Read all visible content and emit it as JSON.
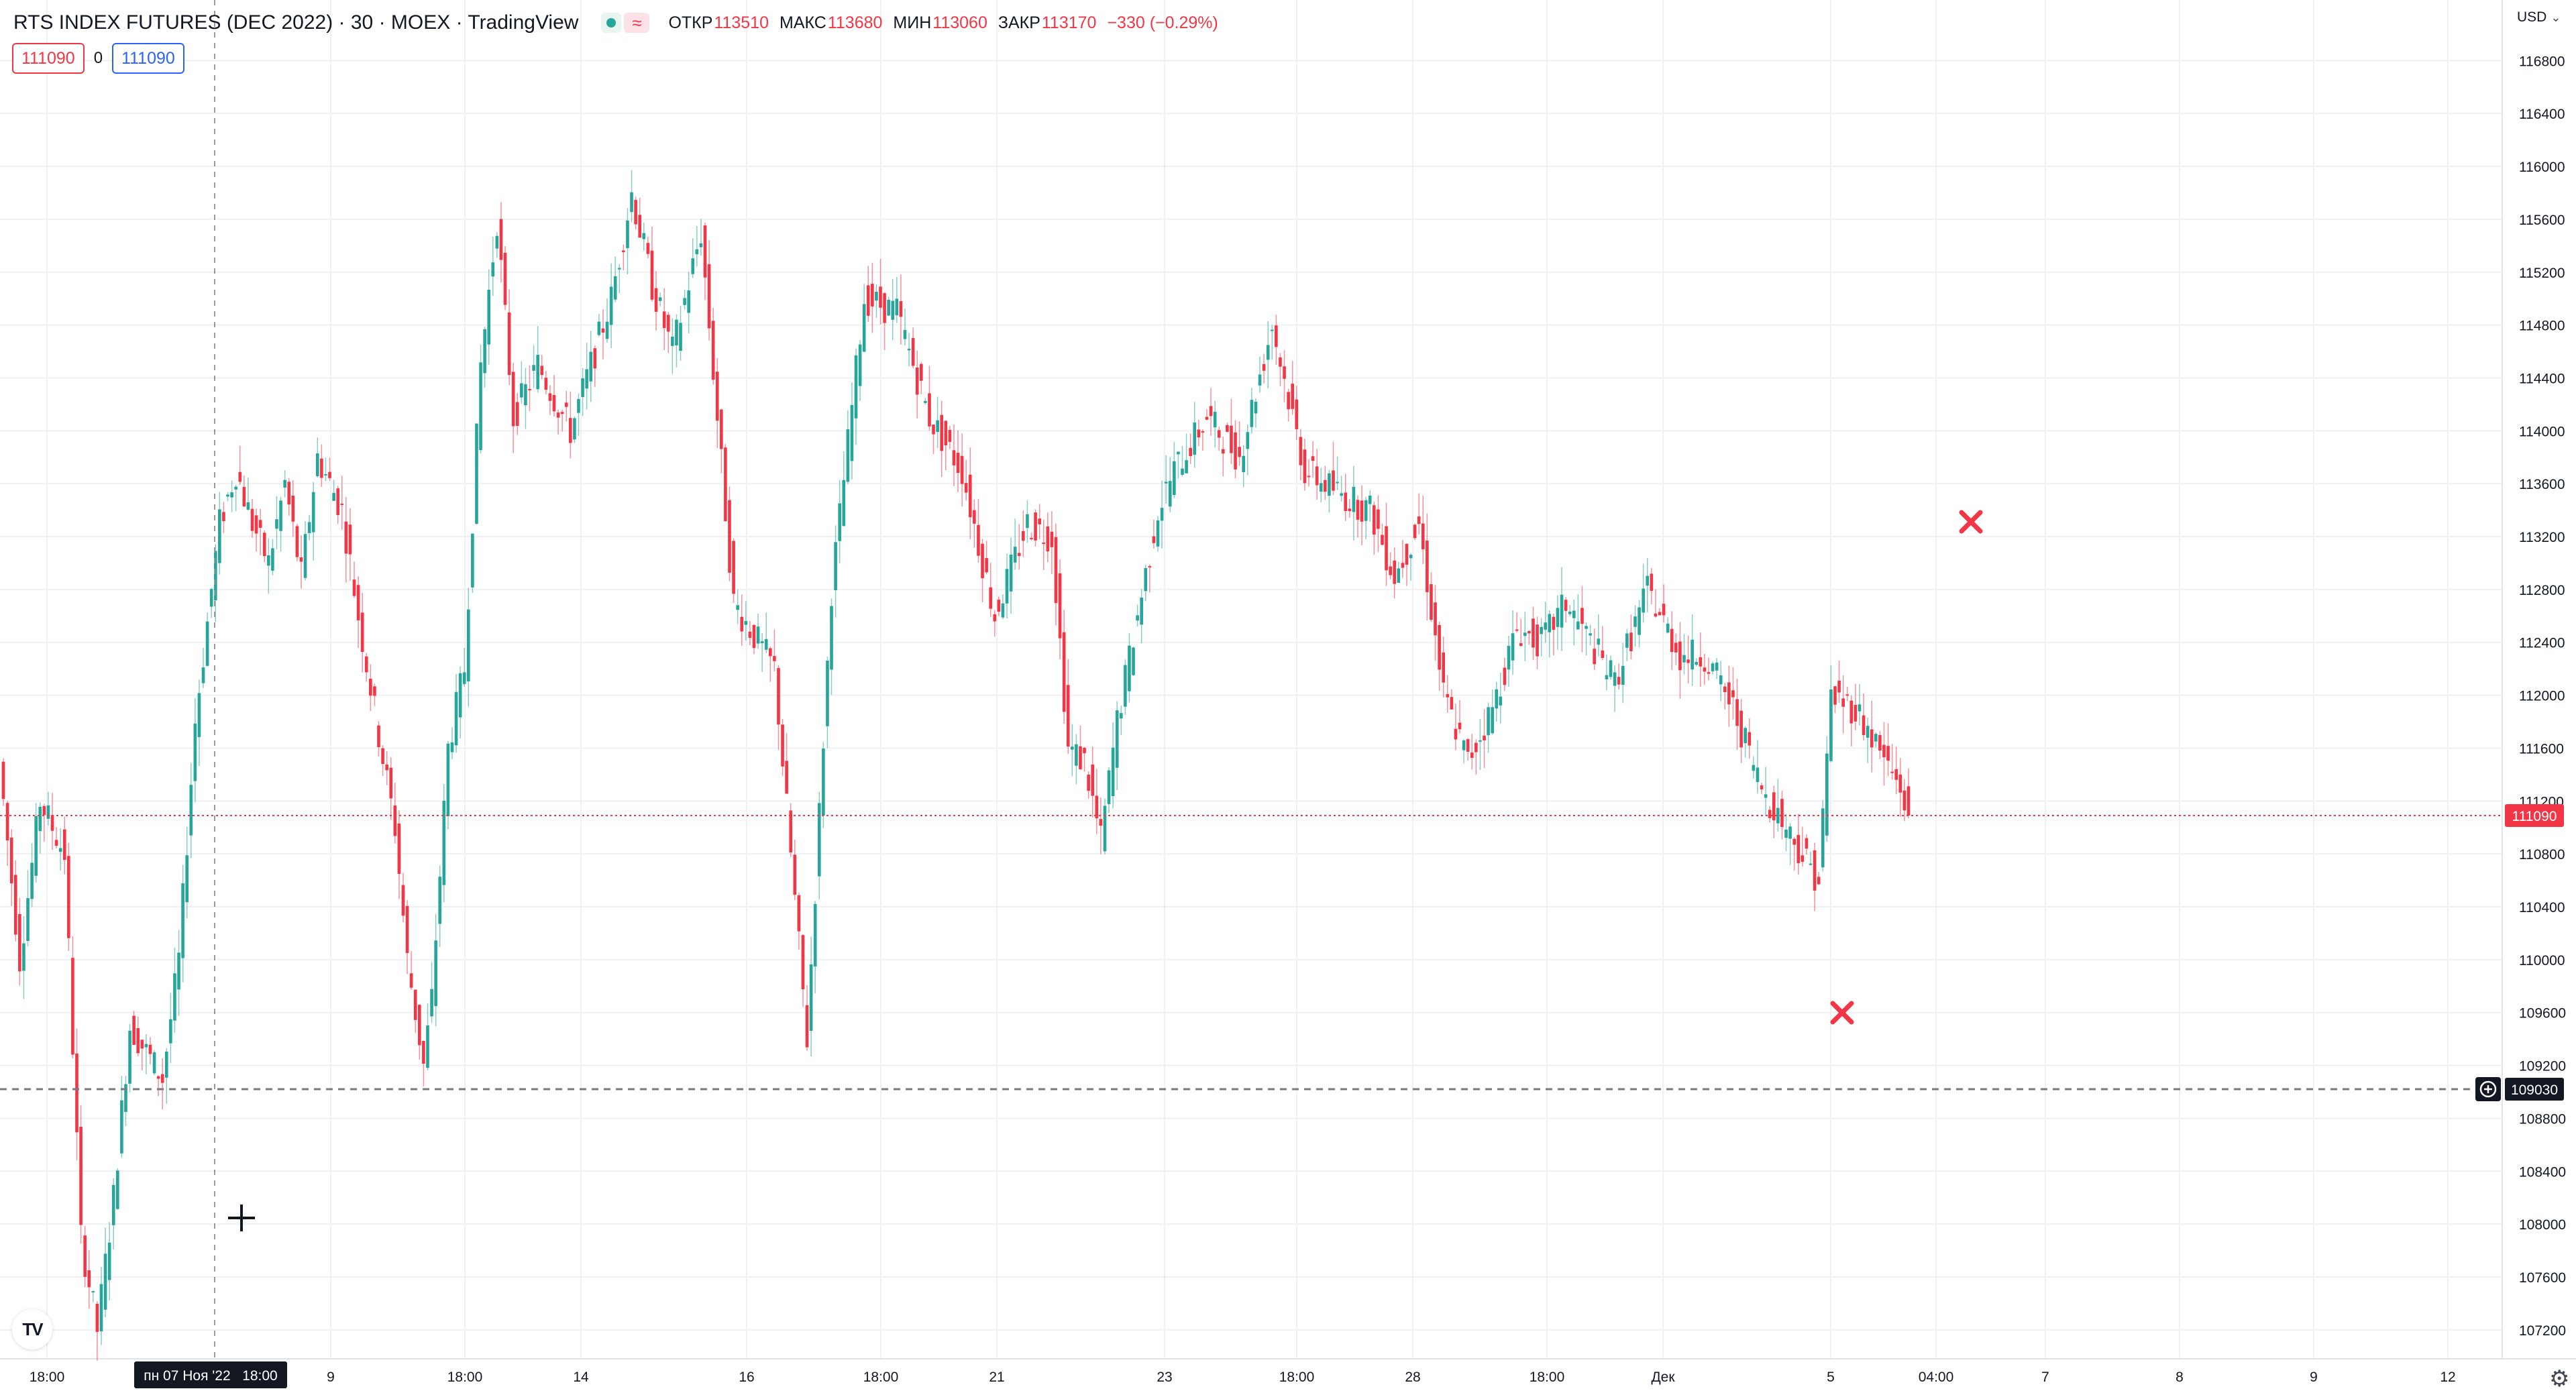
{
  "header": {
    "title": "RTS INDEX FUTURES (DEC 2022) · 30 · MOEX · TradingView",
    "ohlc": [
      {
        "label": "ОТКР",
        "value": "113510"
      },
      {
        "label": "МАКС",
        "value": "113680"
      },
      {
        "label": "МИН",
        "value": "113060"
      },
      {
        "label": "ЗАКР",
        "value": "113170"
      }
    ],
    "change": "−330 (−0.29%)"
  },
  "trade": {
    "sell_price": "111090",
    "spread": "0",
    "buy_price": "111090"
  },
  "currency": "USD",
  "logo_text": "TV",
  "colors": {
    "up": "#26a69a",
    "down": "#f23645",
    "grid": "#eef0f3",
    "text": "#131722",
    "axis_label_bg": "#131722"
  },
  "price_axis": {
    "ticks": [
      "116800",
      "116400",
      "116000",
      "115600",
      "115200",
      "114800",
      "114400",
      "114000",
      "113600",
      "113200",
      "112800",
      "112400",
      "112000",
      "111600",
      "111200",
      "110800",
      "110400",
      "110000",
      "109600",
      "109200",
      "108800",
      "108400",
      "108000",
      "107600",
      "107200"
    ]
  },
  "time_axis": {
    "labels": [
      "18:00",
      "9",
      "18:00",
      "14",
      "16",
      "18:00",
      "21",
      "23",
      "18:00",
      "28",
      "18:00",
      "Дек",
      "5",
      "04:00",
      "7",
      "8",
      "9",
      "12"
    ]
  },
  "crosshair": {
    "date_label": "пн 07 Ноя '22   18:00"
  },
  "last_price_label": "111090",
  "alert_label": "109030",
  "chart_data": {
    "type": "candlestick",
    "symbol": "RTS INDEX FUTURES (DEC 2022)",
    "interval": "30",
    "exchange": "MOEX",
    "y_axis": {
      "label": "USD",
      "range": [
        107000,
        117000
      ]
    },
    "last_price": 111090,
    "alert_level": 109030,
    "markers": [
      "sell-x",
      "buy-x"
    ],
    "path": [
      [
        0,
        111500
      ],
      [
        5,
        110000
      ],
      [
        10,
        111200
      ],
      [
        16,
        110800
      ],
      [
        20,
        107900
      ],
      [
        24,
        107200
      ],
      [
        28,
        108200
      ],
      [
        32,
        109500
      ],
      [
        40,
        109100
      ],
      [
        44,
        110000
      ],
      [
        48,
        111800
      ],
      [
        54,
        113300
      ],
      [
        58,
        113700
      ],
      [
        62,
        113300
      ],
      [
        66,
        113000
      ],
      [
        70,
        113600
      ],
      [
        74,
        112900
      ],
      [
        78,
        113800
      ],
      [
        84,
        113400
      ],
      [
        88,
        112600
      ],
      [
        93,
        111700
      ],
      [
        97,
        111000
      ],
      [
        100,
        110000
      ],
      [
        104,
        109200
      ],
      [
        106,
        109700
      ],
      [
        110,
        111600
      ],
      [
        114,
        112200
      ],
      [
        118,
        114500
      ],
      [
        122,
        115600
      ],
      [
        126,
        114100
      ],
      [
        132,
        114500
      ],
      [
        140,
        114000
      ],
      [
        150,
        115000
      ],
      [
        155,
        115800
      ],
      [
        160,
        115100
      ],
      [
        165,
        114600
      ],
      [
        172,
        115500
      ],
      [
        180,
        112700
      ],
      [
        190,
        112200
      ],
      [
        198,
        109400
      ],
      [
        204,
        112800
      ],
      [
        212,
        115000
      ],
      [
        220,
        114900
      ],
      [
        228,
        114100
      ],
      [
        236,
        113700
      ],
      [
        244,
        112600
      ],
      [
        252,
        113300
      ],
      [
        258,
        113200
      ],
      [
        262,
        111600
      ],
      [
        266,
        111500
      ],
      [
        270,
        110900
      ],
      [
        274,
        111800
      ],
      [
        284,
        113400
      ],
      [
        288,
        113700
      ],
      [
        296,
        114100
      ],
      [
        304,
        113800
      ],
      [
        312,
        114800
      ],
      [
        320,
        113700
      ],
      [
        330,
        113500
      ],
      [
        336,
        113400
      ],
      [
        342,
        112900
      ],
      [
        348,
        113300
      ],
      [
        354,
        112000
      ],
      [
        360,
        111500
      ],
      [
        366,
        111900
      ],
      [
        372,
        112500
      ],
      [
        378,
        112400
      ],
      [
        384,
        112700
      ],
      [
        396,
        112100
      ],
      [
        404,
        112800
      ],
      [
        412,
        112300
      ],
      [
        418,
        112300
      ],
      [
        425,
        111900
      ],
      [
        432,
        111300
      ],
      [
        440,
        110900
      ],
      [
        446,
        110600
      ],
      [
        449,
        112000
      ],
      [
        455,
        111900
      ],
      [
        466,
        111300
      ],
      [
        468,
        111090
      ]
    ]
  }
}
